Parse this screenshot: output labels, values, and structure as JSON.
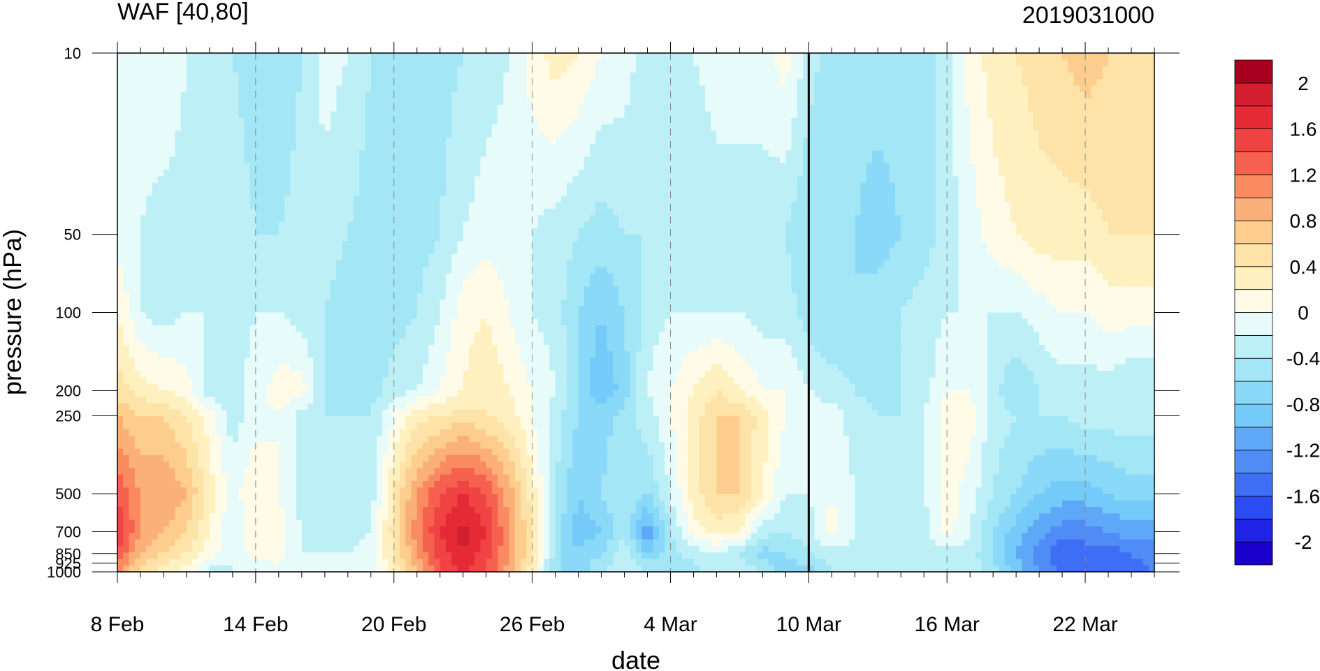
{
  "chart_data": {
    "type": "heatmap",
    "title": "WAF [40,80]",
    "subtitle": "2019031000",
    "xlabel": "date",
    "ylabel": "pressure (hPa)",
    "x_ticks": [
      "8 Feb",
      "14 Feb",
      "20 Feb",
      "26 Feb",
      "4 Mar",
      "10 Mar",
      "16 Mar",
      "22 Mar"
    ],
    "x_tick_days": [
      0,
      6,
      12,
      18,
      24,
      30,
      36,
      42
    ],
    "x_range_days": [
      0,
      45
    ],
    "y_ticks": [
      10,
      50,
      100,
      200,
      250,
      500,
      700,
      850,
      925,
      1000
    ],
    "y_tick_labels": [
      "10",
      "50",
      "100",
      "200",
      "250",
      "500",
      "700",
      "850",
      "925",
      "1000"
    ],
    "y_range": [
      1000,
      10
    ],
    "y_scale": "log",
    "forecast_start_day": 30,
    "grid": "dashed vertical at x ticks",
    "colorbar": {
      "levels": [
        -2.2,
        -2.0,
        -1.8,
        -1.6,
        -1.4,
        -1.2,
        -1.0,
        -0.8,
        -0.6,
        -0.4,
        -0.2,
        0,
        0.2,
        0.4,
        0.6,
        0.8,
        1.0,
        1.2,
        1.4,
        1.6,
        1.8,
        2.0,
        2.2
      ],
      "labels": [
        "2",
        "1.6",
        "1.2",
        "0.8",
        "0.4",
        "0",
        "-0.4",
        "-0.8",
        "-1.2",
        "-1.6",
        "-2"
      ],
      "label_values": [
        2,
        1.6,
        1.2,
        0.8,
        0.4,
        0,
        -0.4,
        -0.8,
        -1.2,
        -1.6,
        -2
      ],
      "colors": [
        "#1a00cc",
        "#1e23e6",
        "#2a4cf2",
        "#3d6ef5",
        "#4f8cf6",
        "#5ea8f7",
        "#74cbf9",
        "#8ad9f8",
        "#a3e6f6",
        "#bdf0f6",
        "#e8fbfb",
        "#fffbe6",
        "#fff0c0",
        "#fde3a8",
        "#fdcd8e",
        "#fbb079",
        "#fa8a5f",
        "#f6604e",
        "#f04444",
        "#e62a35",
        "#d21e2e",
        "#a8001e"
      ]
    },
    "field": [
      {
        "p": 1000,
        "v": [
          1.0,
          0.5,
          0.3,
          0.1,
          -0.3,
          -0.2,
          -0.2,
          -0.1,
          -0.2,
          -0.2,
          -0.2,
          -0.1,
          0.3,
          0.8,
          1.4,
          1.6,
          1.4,
          0.9,
          0.3,
          -0.6,
          -0.7,
          -0.4,
          -0.2,
          -0.4,
          -0.5,
          -0.5,
          -0.3,
          -0.2,
          -0.4,
          -0.8,
          -0.7,
          -0.4,
          -0.4,
          -0.4,
          -0.4,
          -0.3,
          -0.3,
          -0.3,
          -0.5,
          -0.9,
          -1.2,
          -1.4,
          -1.5,
          -1.5,
          -1.5,
          -1.4
        ]
      },
      {
        "p": 850,
        "v": [
          1.4,
          0.8,
          0.6,
          0.4,
          0.1,
          -0.2,
          0.1,
          0.1,
          -0.2,
          -0.2,
          -0.2,
          -0.1,
          0.4,
          1.0,
          1.5,
          1.8,
          1.5,
          1.0,
          0.4,
          -0.5,
          -0.8,
          -0.6,
          -0.3,
          -0.8,
          -0.5,
          -0.3,
          -0.2,
          -0.4,
          -0.7,
          -0.6,
          -0.4,
          -0.3,
          -0.3,
          -0.4,
          -0.4,
          -0.4,
          -0.3,
          -0.3,
          -0.6,
          -1.0,
          -1.3,
          -1.6,
          -1.5,
          -1.5,
          -1.4,
          -1.3
        ]
      },
      {
        "p": 700,
        "v": [
          1.6,
          1.0,
          0.8,
          0.6,
          0.2,
          -0.2,
          0.2,
          0.1,
          -0.2,
          -0.3,
          -0.3,
          -0.2,
          0.5,
          1.1,
          1.6,
          1.9,
          1.6,
          1.0,
          0.4,
          -0.5,
          -0.9,
          -0.8,
          -0.4,
          -1.2,
          -0.4,
          0.1,
          0.3,
          0.2,
          -0.3,
          -0.4,
          -0.3,
          0.1,
          -0.2,
          -0.4,
          -0.3,
          -0.3,
          0.1,
          -0.2,
          -0.6,
          -0.9,
          -1.1,
          -1.3,
          -1.3,
          -1.2,
          -1.1,
          -1.1
        ]
      },
      {
        "p": 500,
        "v": [
          1.4,
          1.0,
          1.0,
          0.8,
          0.3,
          -0.1,
          0.2,
          0.0,
          -0.3,
          -0.3,
          -0.4,
          -0.3,
          0.4,
          1.0,
          1.4,
          1.6,
          1.4,
          0.9,
          0.3,
          -0.4,
          -0.8,
          -0.6,
          -0.4,
          -0.6,
          -0.2,
          0.3,
          0.6,
          0.6,
          0.2,
          -0.2,
          -0.2,
          0.0,
          -0.2,
          -0.4,
          -0.3,
          -0.2,
          0.1,
          -0.1,
          -0.4,
          -0.6,
          -0.8,
          -0.9,
          -0.9,
          -0.8,
          -0.7,
          -0.7
        ]
      },
      {
        "p": 250,
        "v": [
          0.8,
          0.6,
          0.6,
          0.4,
          0.1,
          -0.3,
          -0.1,
          0.0,
          -0.3,
          -0.4,
          -0.4,
          -0.4,
          0.0,
          0.3,
          0.4,
          0.5,
          0.4,
          0.3,
          0.0,
          -0.3,
          -0.6,
          -0.7,
          -0.5,
          -0.3,
          0.0,
          0.3,
          0.6,
          0.6,
          0.3,
          0.0,
          -0.1,
          -0.1,
          -0.3,
          -0.4,
          -0.4,
          -0.2,
          0.1,
          0.1,
          -0.3,
          -0.4,
          -0.4,
          -0.4,
          -0.3,
          -0.3,
          -0.3,
          -0.3
        ]
      },
      {
        "p": 200,
        "v": [
          0.5,
          0.3,
          0.2,
          0.1,
          -0.3,
          -0.3,
          -0.1,
          0.1,
          0.1,
          -0.4,
          -0.5,
          -0.5,
          -0.3,
          -0.2,
          0.0,
          0.2,
          0.4,
          0.2,
          0.0,
          -0.2,
          -0.6,
          -1.0,
          -0.7,
          -0.2,
          0.0,
          0.2,
          0.4,
          0.2,
          0.0,
          0.0,
          -0.2,
          -0.3,
          -0.4,
          -0.5,
          -0.4,
          -0.3,
          0.0,
          0.0,
          -0.3,
          -0.6,
          -0.4,
          -0.3,
          -0.3,
          -0.3,
          -0.4,
          -0.4
        ]
      },
      {
        "p": 100,
        "v": [
          0.2,
          -0.2,
          -0.3,
          -0.2,
          -0.2,
          -0.3,
          -0.2,
          -0.2,
          -0.3,
          -0.4,
          -0.5,
          -0.5,
          -0.5,
          -0.4,
          -0.2,
          0.1,
          0.2,
          0.0,
          -0.2,
          -0.3,
          -0.6,
          -0.8,
          -0.6,
          -0.3,
          -0.2,
          -0.2,
          -0.2,
          -0.2,
          -0.3,
          -0.3,
          -0.5,
          -0.6,
          -0.6,
          -0.5,
          -0.4,
          -0.3,
          -0.2,
          -0.2,
          -0.2,
          -0.2,
          -0.1,
          0.0,
          0.0,
          0.1,
          0.1,
          0.1
        ]
      },
      {
        "p": 50,
        "v": [
          -0.1,
          -0.2,
          -0.3,
          -0.3,
          -0.3,
          -0.3,
          -0.4,
          -0.4,
          -0.3,
          -0.3,
          -0.4,
          -0.5,
          -0.5,
          -0.5,
          -0.4,
          -0.2,
          -0.1,
          -0.1,
          -0.2,
          -0.3,
          -0.4,
          -0.5,
          -0.4,
          -0.4,
          -0.4,
          -0.4,
          -0.3,
          -0.3,
          -0.3,
          -0.4,
          -0.6,
          -0.6,
          -0.6,
          -0.7,
          -0.6,
          -0.5,
          -0.3,
          -0.1,
          0.1,
          0.2,
          0.3,
          0.3,
          0.3,
          0.4,
          0.4,
          0.4
        ]
      },
      {
        "p": 10,
        "v": [
          -0.2,
          -0.1,
          0.0,
          -0.2,
          -0.4,
          -0.4,
          -0.5,
          -0.6,
          -0.4,
          -0.1,
          -0.2,
          -0.4,
          -0.4,
          -0.5,
          -0.5,
          -0.4,
          -0.3,
          -0.2,
          0.1,
          0.3,
          0.2,
          0.0,
          -0.1,
          -0.3,
          -0.2,
          -0.2,
          -0.1,
          -0.1,
          -0.1,
          0.1,
          -0.3,
          -0.5,
          -0.5,
          -0.5,
          -0.5,
          -0.5,
          -0.3,
          0.1,
          0.3,
          0.4,
          0.5,
          0.6,
          0.7,
          0.6,
          0.6,
          0.5
        ]
      }
    ]
  }
}
